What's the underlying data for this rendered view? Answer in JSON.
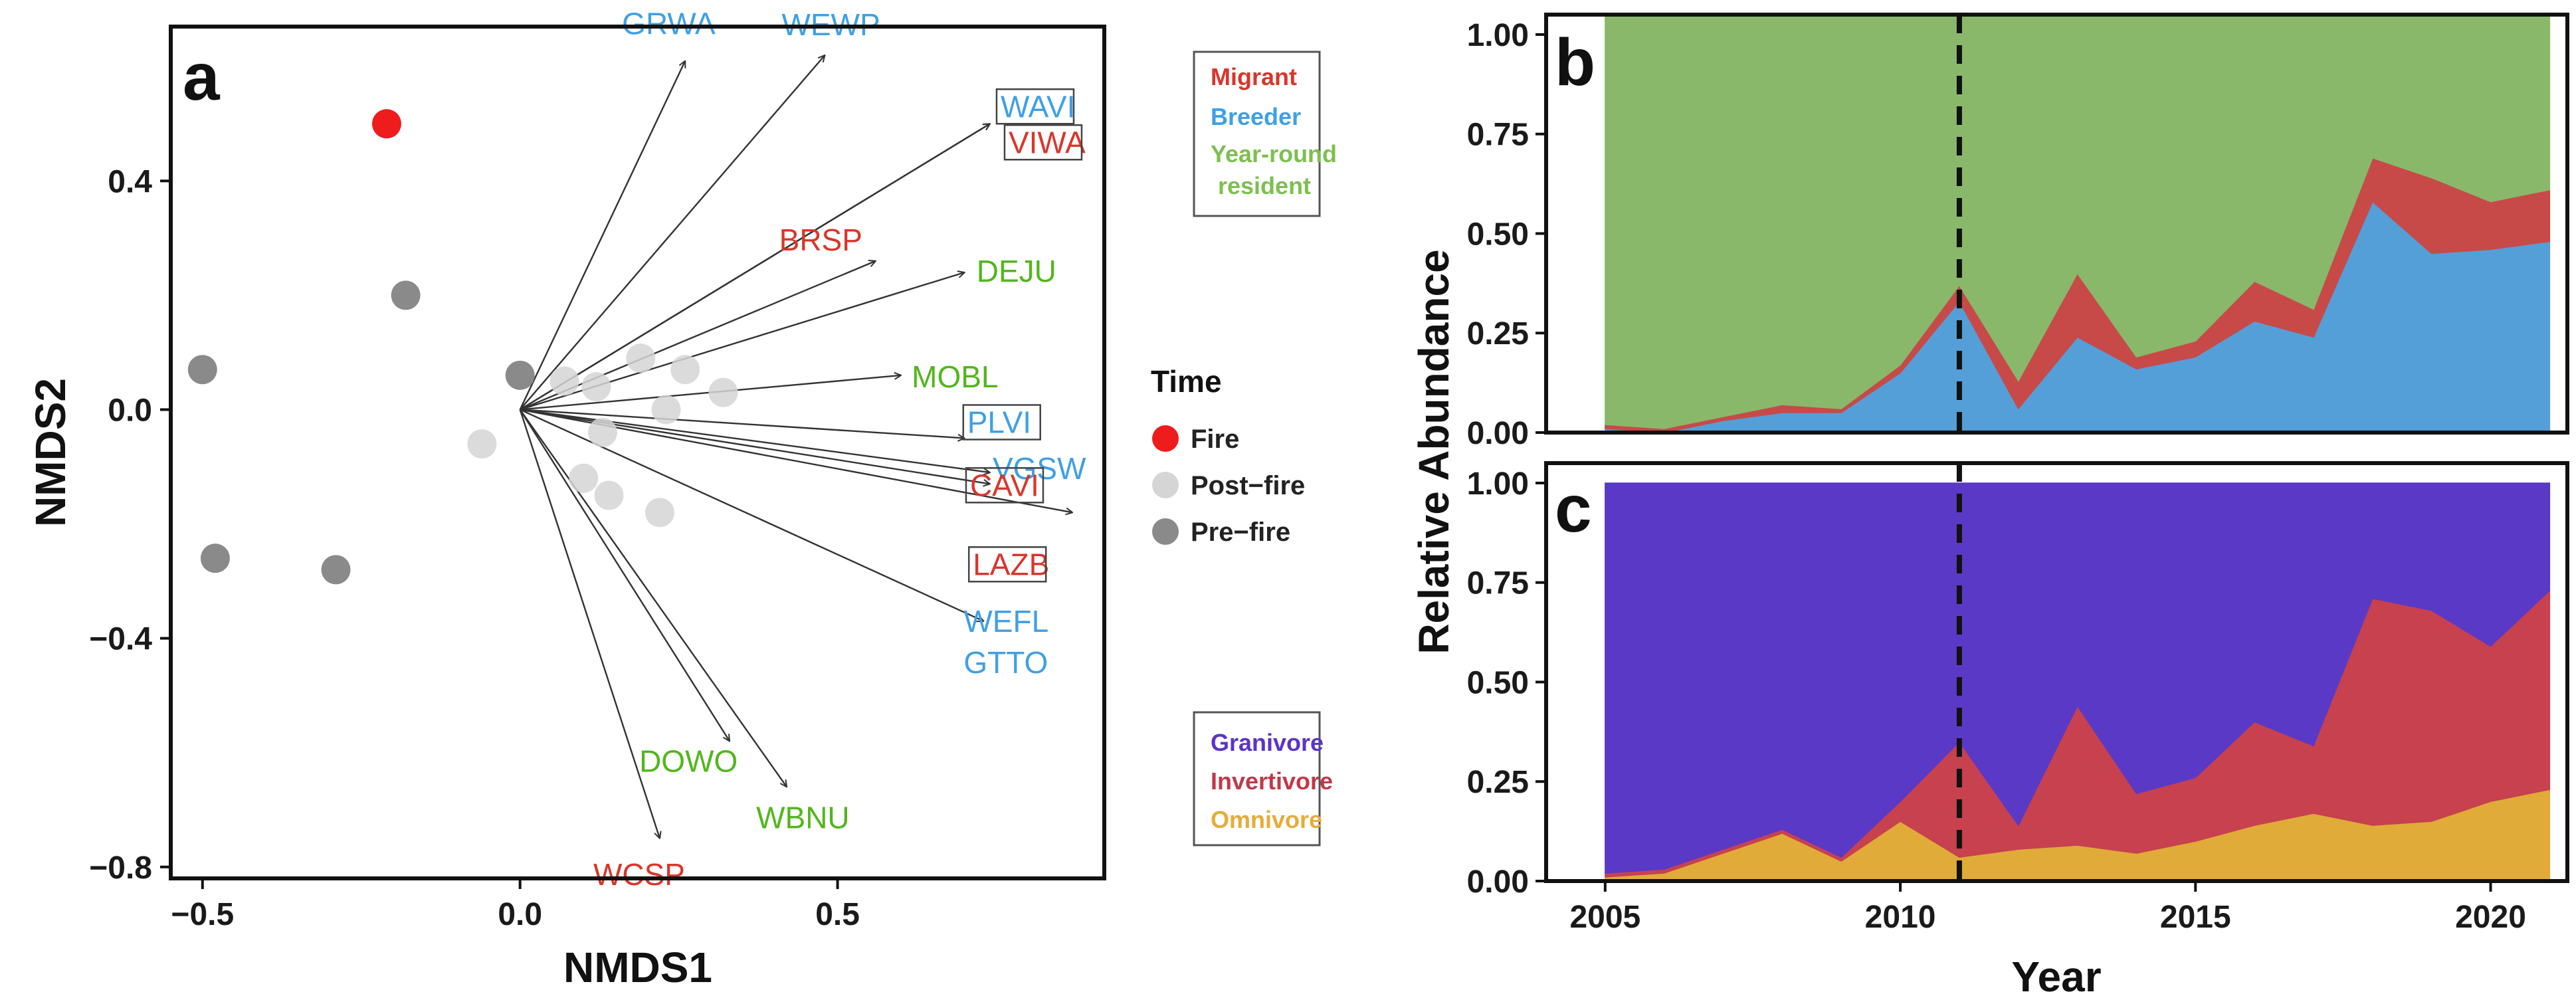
{
  "panel_labels": {
    "a": "a",
    "b": "b",
    "c": "c"
  },
  "chart_data": [
    {
      "id": "a",
      "type": "scatter",
      "xlabel": "NMDS1",
      "ylabel": "NMDS2",
      "xlim": [
        -0.55,
        0.92
      ],
      "ylim": [
        -0.82,
        0.67
      ],
      "xticks": [
        -0.5,
        0.0,
        0.5
      ],
      "xtick_labels": [
        "−0.5",
        "0.0",
        "0.5"
      ],
      "yticks": [
        0.4,
        0.0,
        -0.4,
        -0.8
      ],
      "ytick_labels": [
        "0.4",
        "0.0",
        "−0.4",
        "−0.8"
      ],
      "legend": {
        "title": "Time",
        "items": [
          {
            "label": "Fire",
            "color": "#ee1c1c"
          },
          {
            "label": "Post−fire",
            "color": "#d5d5d5"
          },
          {
            "label": "Pre−fire",
            "color": "#8a8a8a"
          }
        ]
      },
      "points": [
        {
          "group": "Fire",
          "x": -0.21,
          "y": 0.5
        },
        {
          "group": "Pre−fire",
          "x": -0.18,
          "y": 0.2
        },
        {
          "group": "Pre−fire",
          "x": -0.5,
          "y": 0.07
        },
        {
          "group": "Pre−fire",
          "x": -0.48,
          "y": -0.26
        },
        {
          "group": "Pre−fire",
          "x": -0.29,
          "y": -0.28
        },
        {
          "group": "Pre−fire",
          "x": 0.0,
          "y": 0.06
        },
        {
          "group": "Post−fire",
          "x": -0.06,
          "y": -0.06
        },
        {
          "group": "Post−fire",
          "x": 0.07,
          "y": 0.05
        },
        {
          "group": "Post−fire",
          "x": 0.12,
          "y": 0.04
        },
        {
          "group": "Post−fire",
          "x": 0.19,
          "y": 0.09
        },
        {
          "group": "Post−fire",
          "x": 0.26,
          "y": 0.07
        },
        {
          "group": "Post−fire",
          "x": 0.32,
          "y": 0.03
        },
        {
          "group": "Post−fire",
          "x": 0.23,
          "y": 0.0
        },
        {
          "group": "Post−fire",
          "x": 0.13,
          "y": -0.04
        },
        {
          "group": "Post−fire",
          "x": 0.1,
          "y": -0.12
        },
        {
          "group": "Post−fire",
          "x": 0.14,
          "y": -0.15
        },
        {
          "group": "Post−fire",
          "x": 0.22,
          "y": -0.18
        }
      ],
      "species_vectors": [
        {
          "code": "GRWA",
          "x": 0.26,
          "y": 0.61,
          "group": "Breeder"
        },
        {
          "code": "WEWP",
          "x": 0.48,
          "y": 0.62,
          "group": "Breeder"
        },
        {
          "code": "WAVI",
          "x": 0.74,
          "y": 0.5,
          "group": "Breeder",
          "boxed": true
        },
        {
          "code": "VIWA",
          "x": 0.74,
          "y": 0.5,
          "group": "Migrant",
          "boxed": true
        },
        {
          "code": "BRSP",
          "x": 0.56,
          "y": 0.26,
          "group": "Migrant"
        },
        {
          "code": "DEJU",
          "x": 0.7,
          "y": 0.24,
          "group": "Year-round resident"
        },
        {
          "code": "MOBL",
          "x": 0.6,
          "y": 0.06,
          "group": "Year-round resident"
        },
        {
          "code": "PLVI",
          "x": 0.7,
          "y": -0.05,
          "group": "Breeder",
          "boxed": true
        },
        {
          "code": "VGSW",
          "x": 0.74,
          "y": -0.11,
          "group": "Breeder"
        },
        {
          "code": "CAVI",
          "x": 0.74,
          "y": -0.13,
          "group": "Migrant",
          "boxed": true
        },
        {
          "code": "LAZB",
          "x": 0.87,
          "y": -0.18,
          "group": "Migrant",
          "boxed": true
        },
        {
          "code": "WEFL",
          "x": 0.73,
          "y": -0.37,
          "group": "Breeder"
        },
        {
          "code": "GTTO",
          "x": 0.73,
          "y": -0.37,
          "group": "Breeder",
          "arrow": false
        },
        {
          "code": "DOWO",
          "x": 0.33,
          "y": -0.58,
          "group": "Year-round resident"
        },
        {
          "code": "WBNU",
          "x": 0.42,
          "y": -0.66,
          "group": "Year-round resident"
        },
        {
          "code": "WCSP",
          "x": 0.22,
          "y": -0.75,
          "group": "Migrant"
        }
      ],
      "group_colors": {
        "Migrant": "#d9362b",
        "Breeder": "#3fa0e6",
        "Year-round resident": "#52b61c"
      },
      "species_legend": [
        {
          "label": "Migrant",
          "color": "#d9362b"
        },
        {
          "label": "Breeder",
          "color": "#3fa0e6"
        },
        {
          "label": "Year-round",
          "color": "#7cc04e"
        },
        {
          "label": "resident",
          "color": "#7cc04e"
        }
      ]
    },
    {
      "id": "b",
      "type": "area",
      "stacked": true,
      "ylabel": "Relative Abundance",
      "x": [
        2005,
        2006,
        2007,
        2008,
        2009,
        2010,
        2011,
        2012,
        2013,
        2014,
        2015,
        2016,
        2017,
        2018,
        2019,
        2020,
        2021
      ],
      "xlim": [
        2004,
        2021.3
      ],
      "ylim": [
        0,
        1.05
      ],
      "yticks": [
        0,
        0.25,
        0.5,
        0.75,
        1.0
      ],
      "ytick_labels": [
        "0.00",
        "0.25",
        "0.50",
        "0.75",
        "1.00"
      ],
      "vline_x": 2011,
      "series": [
        {
          "name": "Breeder",
          "color": "#549fd8",
          "values": [
            0.01,
            0.0,
            0.03,
            0.05,
            0.05,
            0.15,
            0.33,
            0.06,
            0.24,
            0.16,
            0.19,
            0.28,
            0.24,
            0.58,
            0.45,
            0.46,
            0.48
          ]
        },
        {
          "name": "Migrant",
          "color": "#c74a48",
          "values": [
            0.01,
            0.01,
            0.01,
            0.02,
            0.01,
            0.02,
            0.04,
            0.07,
            0.16,
            0.03,
            0.04,
            0.1,
            0.07,
            0.11,
            0.19,
            0.12,
            0.13
          ]
        },
        {
          "name": "Year-round resident",
          "color": "#89b86a",
          "values": [
            1.03,
            1.04,
            1.01,
            0.98,
            0.99,
            0.88,
            0.68,
            0.92,
            0.65,
            0.86,
            0.82,
            0.67,
            0.74,
            0.36,
            0.41,
            0.47,
            0.44
          ]
        }
      ],
      "legend": [
        {
          "label": "Migrant",
          "color": "#d9362b"
        },
        {
          "label": "Breeder",
          "color": "#3fa0e6"
        },
        {
          "label": "Year-round",
          "color": "#7cc04e"
        },
        {
          "label": "resident",
          "color": "#7cc04e"
        }
      ]
    },
    {
      "id": "c",
      "type": "area",
      "stacked": true,
      "xlabel": "Year",
      "ylabel": "Relative Abundance",
      "x": [
        2005,
        2006,
        2007,
        2008,
        2009,
        2010,
        2011,
        2012,
        2013,
        2014,
        2015,
        2016,
        2017,
        2018,
        2019,
        2020,
        2021
      ],
      "xlim": [
        2004,
        2021.3
      ],
      "ylim": [
        0,
        1.05
      ],
      "xticks": [
        2005,
        2010,
        2015,
        2020
      ],
      "xtick_labels": [
        "2005",
        "2010",
        "2015",
        "2020"
      ],
      "yticks": [
        0,
        0.25,
        0.5,
        0.75,
        1.0
      ],
      "ytick_labels": [
        "0.00",
        "0.25",
        "0.50",
        "0.75",
        "1.00"
      ],
      "vline_x": 2011,
      "series": [
        {
          "name": "Omnivore",
          "color": "#e0ab38",
          "values": [
            0.01,
            0.02,
            0.07,
            0.12,
            0.05,
            0.15,
            0.06,
            0.08,
            0.09,
            0.07,
            0.1,
            0.14,
            0.17,
            0.14,
            0.15,
            0.2,
            0.23
          ]
        },
        {
          "name": "Invertivore",
          "color": "#c7414f",
          "values": [
            0.01,
            0.01,
            0.01,
            0.01,
            0.01,
            0.05,
            0.29,
            0.06,
            0.35,
            0.15,
            0.16,
            0.26,
            0.17,
            0.57,
            0.53,
            0.39,
            0.5
          ]
        },
        {
          "name": "Granivore",
          "color": "#5a39c6",
          "values": [
            0.98,
            0.97,
            0.92,
            0.87,
            0.94,
            0.8,
            0.65,
            0.86,
            0.56,
            0.78,
            0.74,
            0.6,
            0.66,
            0.29,
            0.32,
            0.41,
            0.27
          ]
        }
      ],
      "legend": [
        {
          "label": "Granivore",
          "color": "#5b33c9"
        },
        {
          "label": "Invertivore",
          "color": "#c0394b"
        },
        {
          "label": "Omnivore",
          "color": "#e6ac3a"
        }
      ]
    }
  ]
}
